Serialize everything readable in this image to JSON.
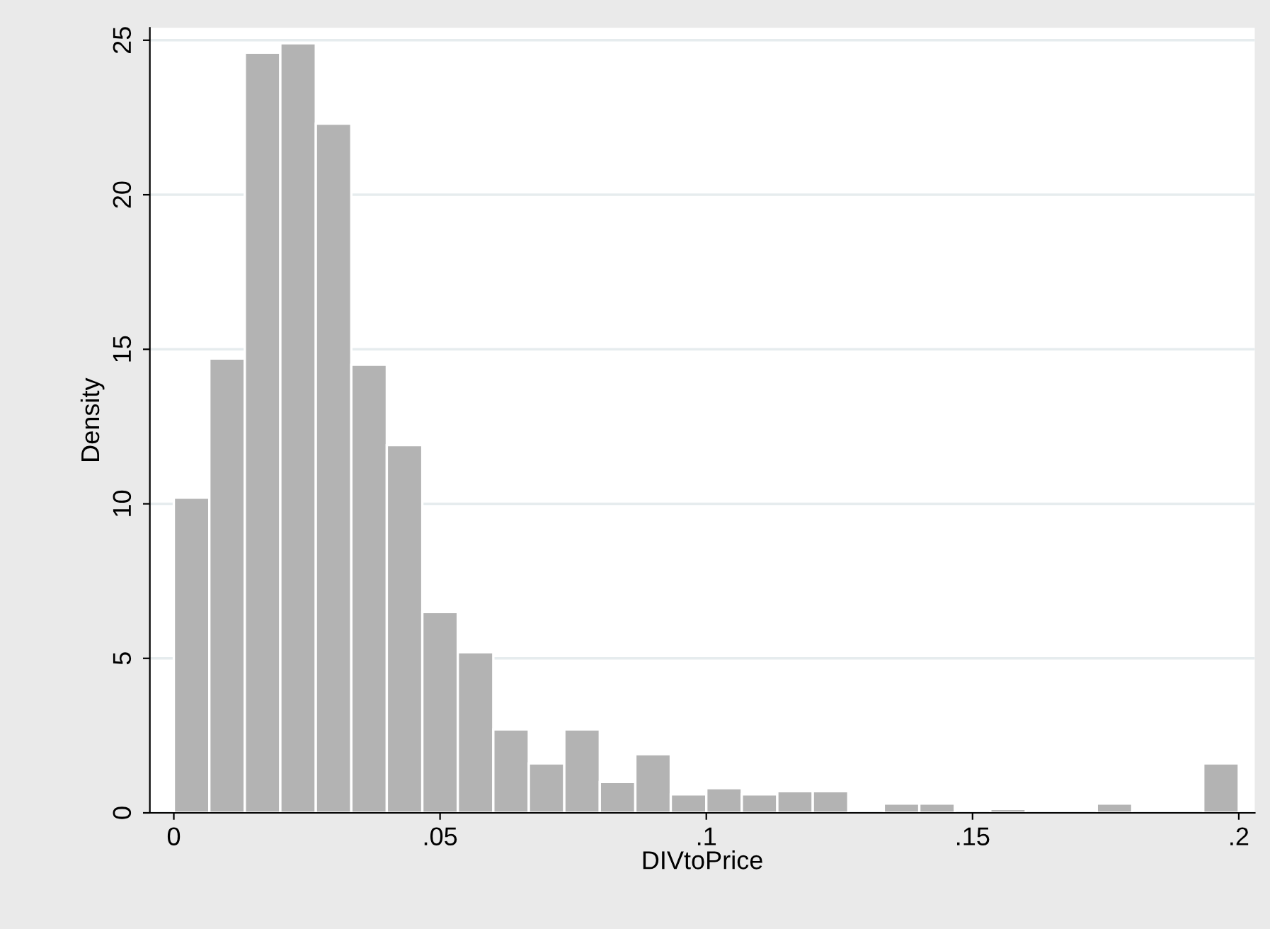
{
  "chart_data": {
    "type": "histogram",
    "xlabel": "DIVtoPrice",
    "ylabel": "Density",
    "bins": [
      0,
      0.00667,
      0.01333,
      0.02,
      0.02667,
      0.03333,
      0.04,
      0.04667,
      0.05333,
      0.06,
      0.06667,
      0.07333,
      0.08,
      0.08667,
      0.09333,
      0.1,
      0.10667,
      0.11333,
      0.12,
      0.12667,
      0.13333,
      0.14,
      0.14667,
      0.15333,
      0.16,
      0.16667,
      0.17333,
      0.18,
      0.18667,
      0.19333,
      0.2
    ],
    "values": [
      10.2,
      14.7,
      24.6,
      24.9,
      22.3,
      14.5,
      11.9,
      6.5,
      5.2,
      2.7,
      1.6,
      2.7,
      1.0,
      1.9,
      0.6,
      0.8,
      0.6,
      0.7,
      0.7,
      0,
      0.3,
      0.3,
      0,
      0.13,
      0,
      0,
      0.3,
      0,
      0,
      1.6
    ],
    "color": "#b3b3b3",
    "xlim": [
      -0.0045,
      0.203
    ],
    "ylim": [
      0,
      25.4
    ],
    "xticks": [
      0,
      {
        "value": 0.05,
        "label": ".05"
      },
      {
        "value": 0.1,
        "label": ".1"
      },
      {
        "value": 0.15,
        "label": ".15"
      },
      {
        "value": 0.2,
        "label": ".2"
      }
    ],
    "yticks": [
      0,
      5,
      10,
      15,
      20,
      25
    ],
    "grid": "y"
  }
}
